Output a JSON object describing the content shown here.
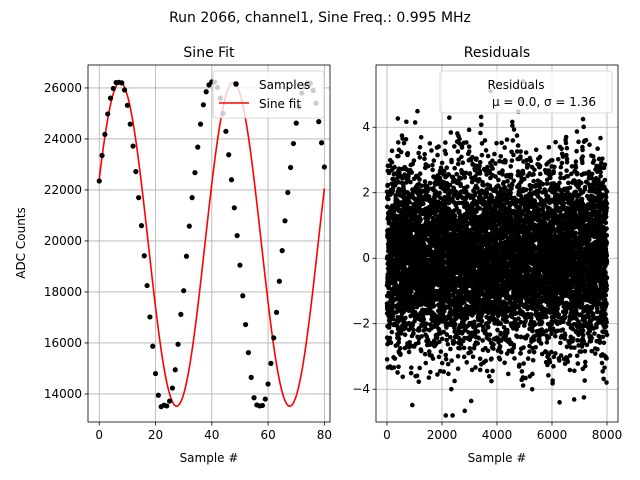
{
  "figure": {
    "suptitle": "Run 2066, channel1, Sine Freq.: 0.995 MHz"
  },
  "chart_data": [
    {
      "type": "scatter",
      "title": "Sine Fit",
      "xlabel": "Sample #",
      "ylabel": "ADC Counts",
      "xlim": [
        -4,
        82
      ],
      "ylim": [
        12900,
        26900
      ],
      "xticks": [
        0,
        20,
        40,
        60,
        80
      ],
      "yticks": [
        14000,
        16000,
        18000,
        20000,
        22000,
        24000,
        26000
      ],
      "grid": true,
      "legend": {
        "location": "top-right",
        "entries": [
          "Samples",
          "Sine fit"
        ]
      },
      "series": [
        {
          "name": "Samples",
          "kind": "points",
          "color": "#000000",
          "x": [
            0,
            1,
            2,
            3,
            4,
            5,
            6,
            7,
            8,
            9,
            10,
            11,
            12,
            13,
            14,
            15,
            16,
            17,
            18,
            19,
            20,
            21,
            22,
            23,
            24,
            25,
            26,
            27,
            28,
            29,
            30,
            31,
            32,
            33,
            34,
            35,
            36,
            37,
            38,
            39,
            40,
            41,
            42,
            43,
            44,
            45,
            46,
            47,
            48,
            49,
            50,
            51,
            52,
            53,
            54,
            55,
            56,
            57,
            58,
            59,
            60,
            61,
            62,
            63,
            64,
            65,
            66,
            67,
            68,
            69,
            70,
            71,
            72,
            73,
            74,
            75,
            76,
            77,
            78,
            79,
            80
          ],
          "y": [
            22350,
            23350,
            24180,
            24980,
            25600,
            25980,
            26210,
            26220,
            26200,
            25920,
            25320,
            24580,
            23720,
            22720,
            21700,
            20600,
            19420,
            18250,
            17020,
            15870,
            14800,
            13950,
            13500,
            13560,
            13530,
            13720,
            14230,
            14950,
            15950,
            17120,
            18050,
            19400,
            20580,
            21700,
            22680,
            23680,
            24580,
            25340,
            25850,
            26120,
            26240,
            26230,
            26020,
            25600,
            25000,
            24300,
            23380,
            22400,
            21300,
            20210,
            19050,
            17850,
            16720,
            15620,
            14650,
            13850,
            13570,
            13530,
            13550,
            13800,
            14390,
            15200,
            16200,
            17200,
            18420,
            19620,
            20790,
            21900,
            22880,
            23820,
            24620,
            25260,
            25800,
            26100,
            26200,
            26180,
            25900,
            25400,
            24680,
            23850,
            22900
          ]
        },
        {
          "name": "Sine fit",
          "kind": "line",
          "color": "#ff0000",
          "model": {
            "amplitude": 6350,
            "offset": 19870,
            "period_samples": 40.2,
            "peak_sample": 7.4,
            "x_range": [
              0,
              80
            ]
          }
        }
      ]
    },
    {
      "type": "scatter",
      "title": "Residuals",
      "xlabel": "Sample #",
      "xlim": [
        -400,
        8400
      ],
      "ylim": [
        -5.0,
        5.9
      ],
      "xticks": [
        0,
        2000,
        4000,
        6000,
        8000
      ],
      "yticks": [
        -4,
        -2,
        0,
        2,
        4
      ],
      "grid": true,
      "legend": {
        "location": "top-right",
        "entries": [
          "Residuals",
          "μ = 0.0, σ = 1.36"
        ]
      },
      "series": [
        {
          "name": "Residuals",
          "kind": "points",
          "color": "#000000",
          "n_points": 8000,
          "mean": 0.0,
          "std": 1.36,
          "x_range": [
            0,
            8000
          ]
        }
      ]
    }
  ],
  "colors": {
    "points": "#000000",
    "fit_line": "#ff0000",
    "grid": "#b0b0b0"
  }
}
